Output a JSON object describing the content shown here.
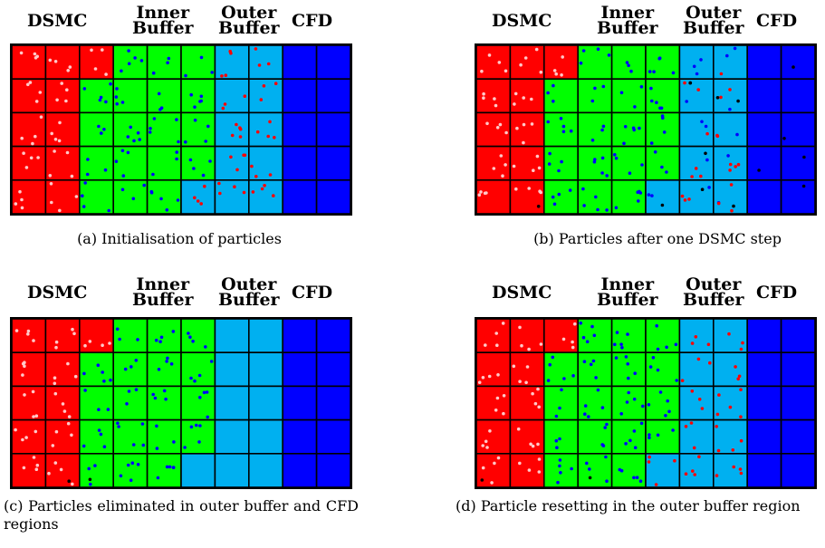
{
  "colors": {
    "dsmc": "#ff0000",
    "inner_buffer": "#00ff00",
    "outer_buffer": "#00b0f0",
    "cfd": "#0000ff",
    "grid_line": "#000000",
    "particle_white": "#ffc8c8",
    "particle_blue": "#0000ff",
    "particle_red": "#ff0000",
    "particle_black": "#000000"
  },
  "region_labels": {
    "dsmc": "DSMC",
    "inner_line1": "Inner",
    "inner_line2": "Buffer",
    "outer_line1": "Outer",
    "outer_line2": "Buffer",
    "cfd": "CFD"
  },
  "panels": [
    {
      "id": "a",
      "caption": "(a) Initialisation of particles",
      "outer_particles": "red",
      "outer_tail_particles": "red"
    },
    {
      "id": "b",
      "caption": "(b) Particles after one DSMC step",
      "outer_particles": "mixed",
      "outer_tail_particles": "mixed"
    },
    {
      "id": "c",
      "caption": "(c) Particles eliminated in outer buffer and CFD regions",
      "outer_particles": "none",
      "outer_tail_particles": "none"
    },
    {
      "id": "d",
      "caption": "(d) Particle resetting in the outer buffer region",
      "outer_particles": "red",
      "outer_tail_particles": "red"
    }
  ]
}
